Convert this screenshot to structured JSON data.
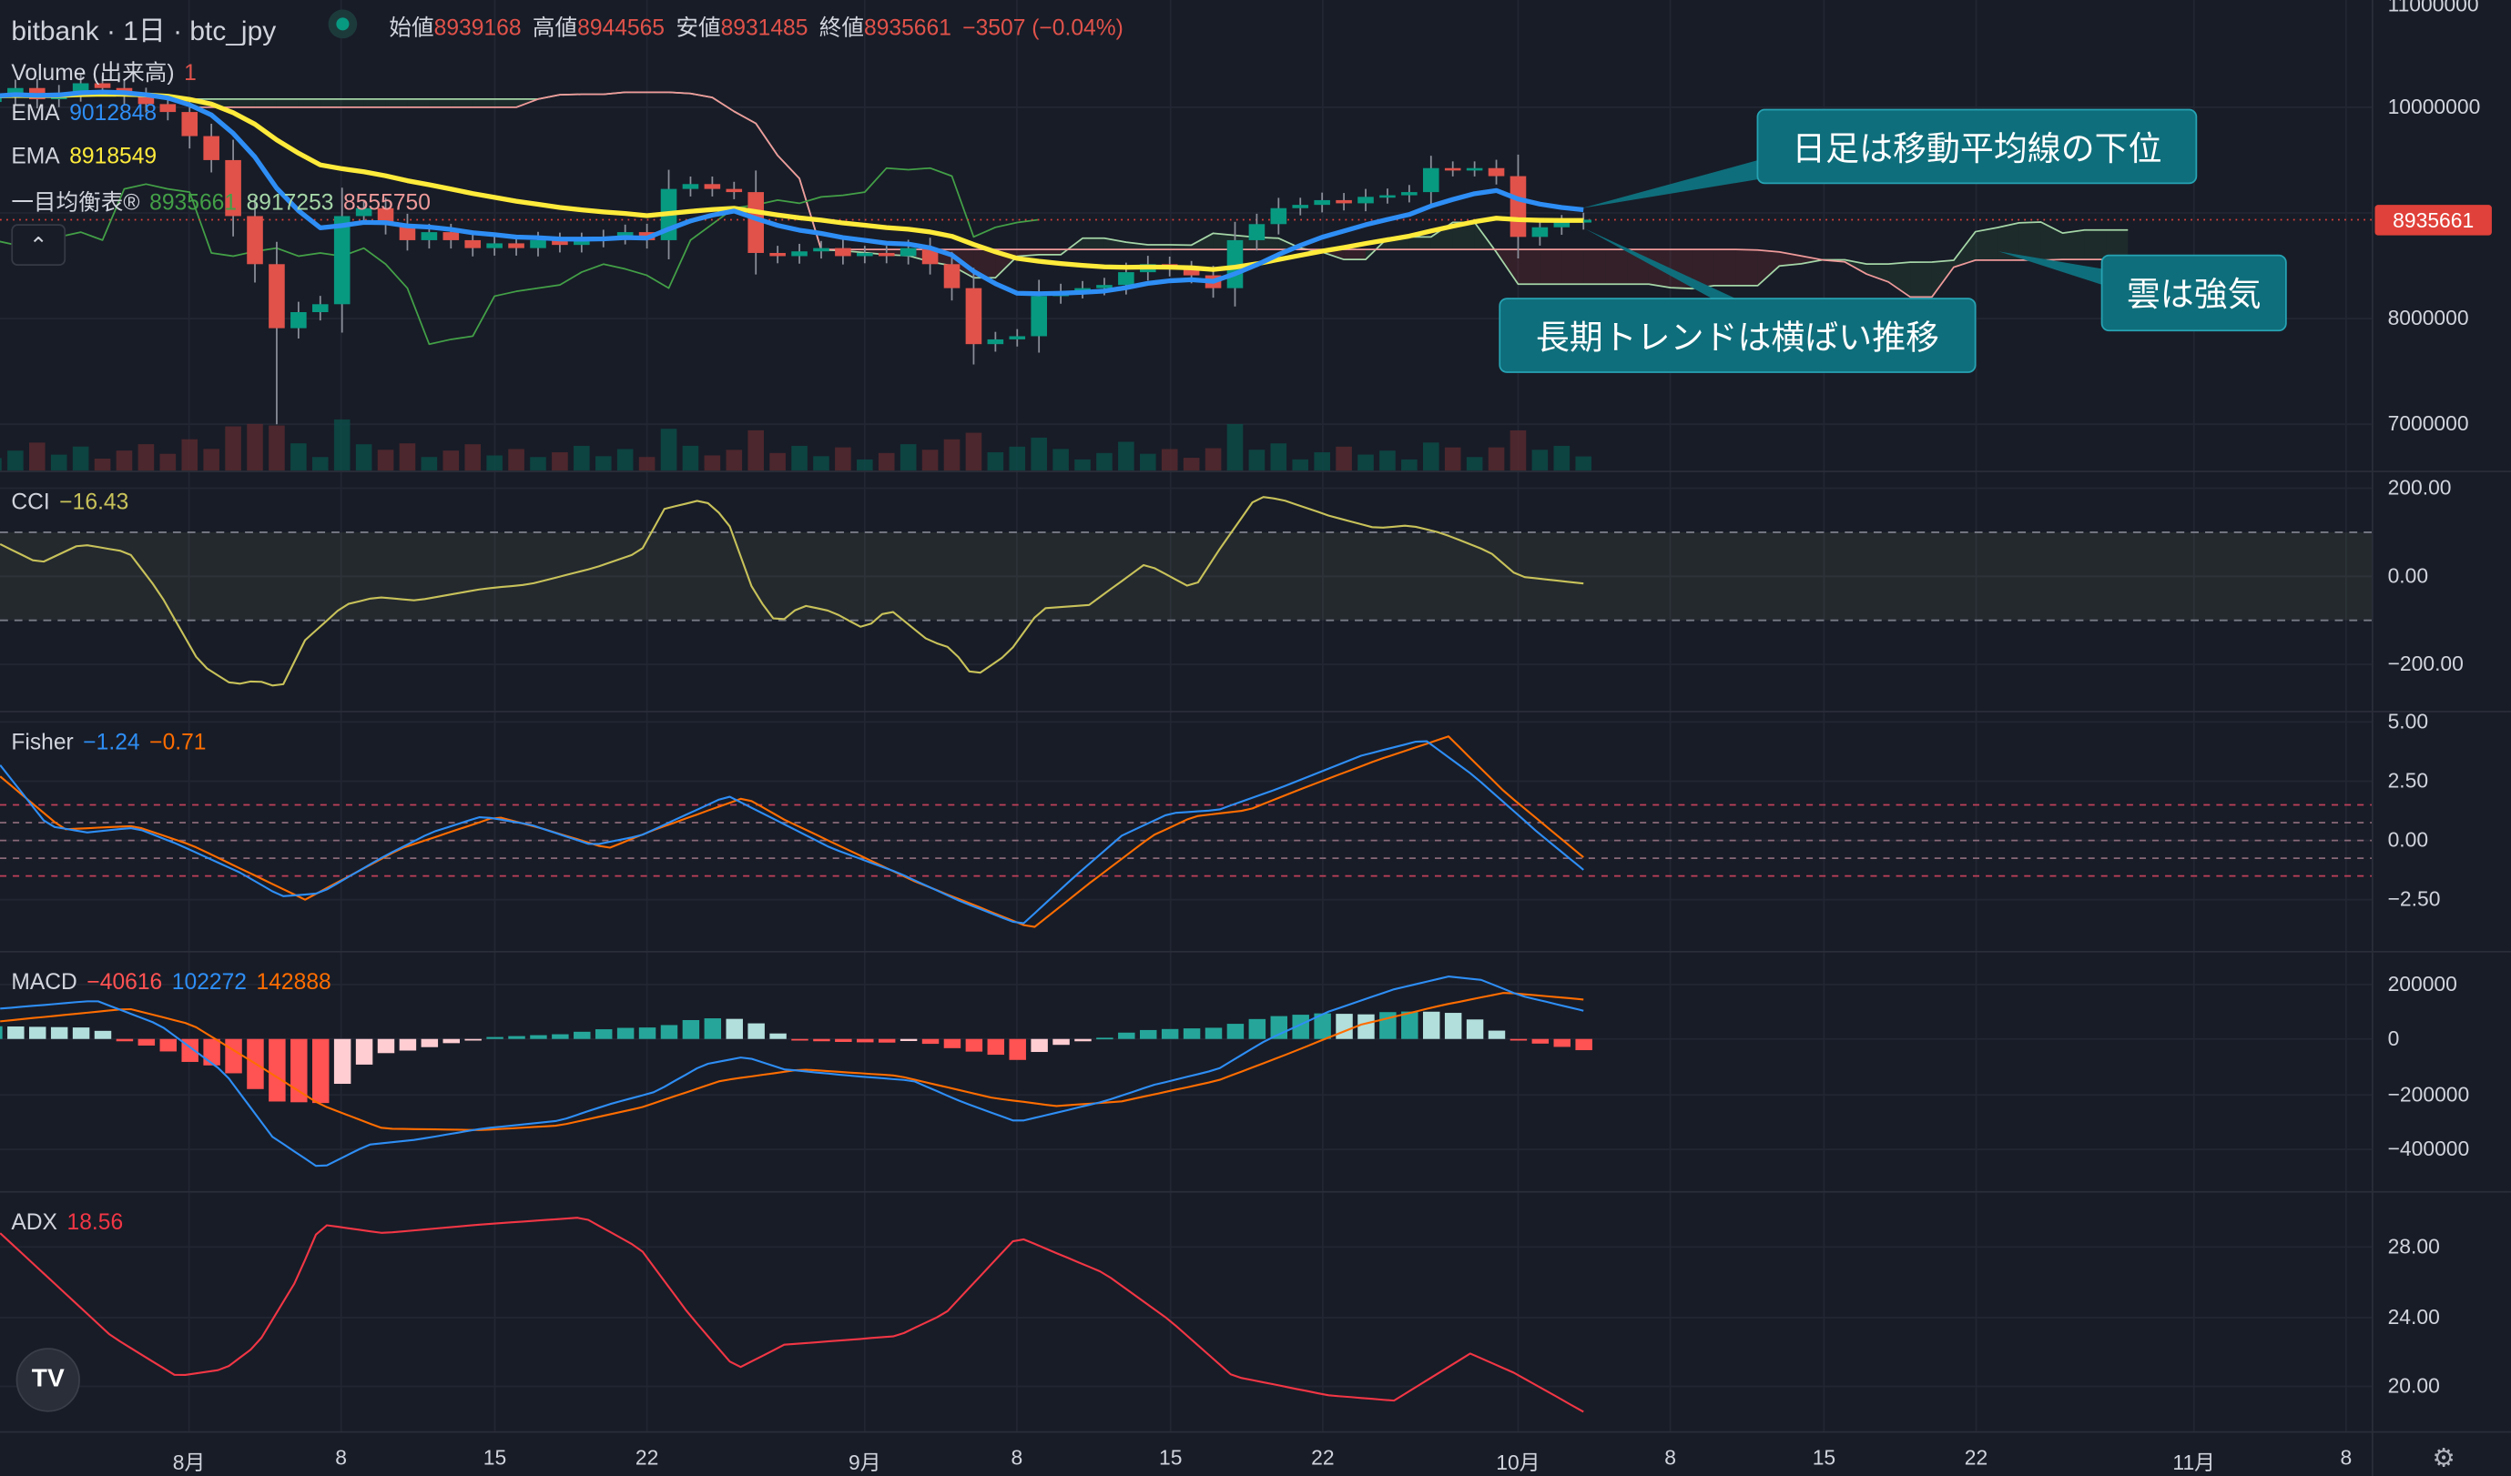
{
  "header": {
    "symbol": "bitbank · 1日 · btc_jpy",
    "open_label": "始値",
    "open": "8939168",
    "high_label": "高値",
    "high": "8944565",
    "low_label": "安値",
    "low": "8931485",
    "close_label": "終値",
    "close": "8935661",
    "change": "−3507 (−0.04%)"
  },
  "legends": {
    "volume": {
      "label": "Volume (出来高)",
      "value": "1"
    },
    "ema1": {
      "label": "EMA",
      "value": "9012848"
    },
    "ema2": {
      "label": "EMA",
      "value": "8918549"
    },
    "ichimoku": {
      "label": "一目均衡表®",
      "v1": "8935661",
      "v2": "8917253",
      "v3": "8555750"
    },
    "cci": {
      "label": "CCI",
      "value": "−16.43"
    },
    "fisher": {
      "label": "Fisher",
      "v1": "−1.24",
      "v2": "−0.71"
    },
    "macd": {
      "label": "MACD",
      "v1": "−40616",
      "v2": "102272",
      "v3": "142888"
    },
    "adx": {
      "label": "ADX",
      "value": "18.56"
    }
  },
  "price_axis": [
    "11000000",
    "10000000",
    "9000000",
    "8000000",
    "7000000"
  ],
  "current_price_label": "8935661",
  "cci_axis": [
    "200.00",
    "0.00",
    "−200.00"
  ],
  "fisher_axis": [
    "5.00",
    "2.50",
    "0.00",
    "−2.50"
  ],
  "macd_axis": [
    "200000",
    "0",
    "−200000",
    "−400000"
  ],
  "adx_axis": [
    "28.00",
    "24.00",
    "20.00"
  ],
  "time_axis": [
    "8月",
    "8",
    "15",
    "22",
    "9月",
    "8",
    "15",
    "22",
    "10月",
    "8",
    "15",
    "22",
    "11月",
    "8"
  ],
  "annotations": [
    "日足は移動平均線の下位",
    "長期トレンドは横ばい推移",
    "雲は強気"
  ],
  "icons": {
    "collapse": "chevron-up-icon",
    "logo": "tradingview-logo",
    "settings": "settings-icon"
  },
  "colors": {
    "up": "#089981",
    "down": "#e0524a",
    "ema1": "#2e8ef5",
    "ema2": "#ffeb3b",
    "chikou": "#43a047",
    "spanA": "#a5d6a7",
    "spanB": "#ef9a9a",
    "cci": "#c8c25a",
    "fisher1": "#2e8ef5",
    "fisher2": "#ff6d00",
    "adx": "#f23645",
    "accent": "#0f6e7b"
  },
  "chart_data": {
    "type": "candlestick",
    "start_date": "07-23",
    "closes": [
      10106000,
      10182000,
      10076000,
      10136000,
      10227000,
      10182000,
      10106000,
      10030000,
      9955000,
      9727000,
      9500000,
      8970000,
      8515000,
      7909000,
      8061000,
      8136000,
      8970000,
      9045000,
      8894000,
      8742000,
      8818000,
      8742000,
      8667000,
      8712000,
      8667000,
      8742000,
      8697000,
      8742000,
      8773000,
      8818000,
      8742000,
      9227000,
      9273000,
      9227000,
      9197000,
      8621000,
      8591000,
      8636000,
      8667000,
      8591000,
      8621000,
      8591000,
      8667000,
      8515000,
      8288000,
      7758000,
      7803000,
      7833000,
      8212000,
      8258000,
      8288000,
      8318000,
      8439000,
      8515000,
      8470000,
      8409000,
      8288000,
      8742000,
      8894000,
      9045000,
      9076000,
      9121000,
      9091000,
      9152000,
      9167000,
      9197000,
      9424000,
      9409000,
      9424000,
      9348000,
      8773000,
      8864000,
      8909000,
      8935661
    ],
    "first_open": 10050000,
    "special_lows": {
      "13": 7000000
    },
    "price_range": [
      6700000,
      11050000
    ],
    "ema_periods": [
      10,
      25
    ],
    "cci": [
      [
        0.3,
        73
      ],
      [
        2.1,
        29
      ],
      [
        4.0,
        73
      ],
      [
        6.2,
        55
      ],
      [
        7.6,
        -36
      ],
      [
        9.5,
        -200
      ],
      [
        11.0,
        -247
      ],
      [
        12.1,
        -236
      ],
      [
        13.2,
        -255
      ],
      [
        14.3,
        -145
      ],
      [
        16.1,
        -65
      ],
      [
        17.6,
        -47
      ],
      [
        19.4,
        -55
      ],
      [
        22.4,
        -29
      ],
      [
        24.6,
        -18
      ],
      [
        27.5,
        18
      ],
      [
        29.7,
        55
      ],
      [
        30.8,
        153
      ],
      [
        32.6,
        175
      ],
      [
        33.7,
        127
      ],
      [
        34.9,
        -36
      ],
      [
        36.0,
        -109
      ],
      [
        37.1,
        -65
      ],
      [
        38.5,
        -80
      ],
      [
        40.0,
        -120
      ],
      [
        41.1,
        -73
      ],
      [
        42.9,
        -145
      ],
      [
        44.0,
        -164
      ],
      [
        45.0,
        -229
      ],
      [
        46.6,
        -175
      ],
      [
        48.1,
        -73
      ],
      [
        50.3,
        -65
      ],
      [
        52.9,
        29
      ],
      [
        55.1,
        -29
      ],
      [
        56.2,
        55
      ],
      [
        58.0,
        182
      ],
      [
        59.1,
        175
      ],
      [
        61.3,
        138
      ],
      [
        63.5,
        109
      ],
      [
        65.0,
        116
      ],
      [
        66.5,
        98
      ],
      [
        68.7,
        55
      ],
      [
        70.0,
        0
      ],
      [
        73,
        -16.43
      ]
    ],
    "fisher": [
      [
        0.3,
        3.18
      ],
      [
        2.5,
        0.61
      ],
      [
        4.3,
        0.34
      ],
      [
        6.5,
        0.54
      ],
      [
        8.4,
        -0.14
      ],
      [
        11.3,
        -1.35
      ],
      [
        13.2,
        -2.36
      ],
      [
        15.0,
        -2.23
      ],
      [
        17.9,
        -0.68
      ],
      [
        20.1,
        0.34
      ],
      [
        22.4,
        1.01
      ],
      [
        24.6,
        0.68
      ],
      [
        27.5,
        -0.2
      ],
      [
        29.7,
        0.2
      ],
      [
        33.7,
        1.89
      ],
      [
        35.6,
        1.01
      ],
      [
        38.5,
        -0.34
      ],
      [
        41.5,
        -1.35
      ],
      [
        44.4,
        -2.57
      ],
      [
        47.2,
        -3.58
      ],
      [
        49.6,
        -1.55
      ],
      [
        51.8,
        0.2
      ],
      [
        54.0,
        1.15
      ],
      [
        56.2,
        1.28
      ],
      [
        59.1,
        2.23
      ],
      [
        62.8,
        3.58
      ],
      [
        65.7,
        4.26
      ],
      [
        68.0,
        2.7
      ],
      [
        70.9,
        0.34
      ],
      [
        73,
        -1.24
      ]
    ],
    "fisher_trigger": [
      [
        0.3,
        2.7
      ],
      [
        3.2,
        0.47
      ],
      [
        6.5,
        0.61
      ],
      [
        9.1,
        -0.2
      ],
      [
        14.3,
        -2.5
      ],
      [
        18.7,
        -0.34
      ],
      [
        23.1,
        1.01
      ],
      [
        25.3,
        0.47
      ],
      [
        28.2,
        -0.34
      ],
      [
        30.4,
        0.47
      ],
      [
        34.5,
        1.82
      ],
      [
        36.3,
        0.88
      ],
      [
        42.2,
        -1.69
      ],
      [
        47.7,
        -3.72
      ],
      [
        50.3,
        -1.82
      ],
      [
        53.2,
        0.2
      ],
      [
        55.1,
        1.01
      ],
      [
        57.6,
        1.28
      ],
      [
        59.8,
        2.09
      ],
      [
        63.5,
        3.38
      ],
      [
        66.8,
        4.39
      ],
      [
        69.4,
        2.03
      ],
      [
        73,
        -0.71
      ]
    ],
    "macd": [
      [
        0.3,
        110000
      ],
      [
        4.7,
        139000
      ],
      [
        7.6,
        52000
      ],
      [
        10.6,
        -122000
      ],
      [
        12.8,
        -354000
      ],
      [
        15.0,
        -470000
      ],
      [
        17.2,
        -383000
      ],
      [
        19.4,
        -365000
      ],
      [
        22.4,
        -325000
      ],
      [
        26.0,
        -296000
      ],
      [
        28.2,
        -238000
      ],
      [
        30.4,
        -191000
      ],
      [
        32.6,
        -93000
      ],
      [
        34.5,
        -64000
      ],
      [
        36.3,
        -110000
      ],
      [
        39.3,
        -133000
      ],
      [
        42.2,
        -151000
      ],
      [
        44.4,
        -226000
      ],
      [
        47.0,
        -301000
      ],
      [
        48.8,
        -267000
      ],
      [
        51.0,
        -226000
      ],
      [
        53.2,
        -168000
      ],
      [
        56.2,
        -110000
      ],
      [
        58.4,
        -6000
      ],
      [
        61.3,
        99000
      ],
      [
        64.3,
        180000
      ],
      [
        66.8,
        226000
      ],
      [
        68.3,
        214000
      ],
      [
        70.1,
        157000
      ],
      [
        73,
        102272
      ]
    ],
    "macd_signal": [
      [
        0.3,
        64000
      ],
      [
        6.2,
        110000
      ],
      [
        9.1,
        52000
      ],
      [
        12.1,
        -93000
      ],
      [
        15.0,
        -238000
      ],
      [
        17.9,
        -325000
      ],
      [
        22.4,
        -330000
      ],
      [
        26.0,
        -313000
      ],
      [
        29.7,
        -249000
      ],
      [
        33.4,
        -151000
      ],
      [
        37.1,
        -110000
      ],
      [
        41.5,
        -133000
      ],
      [
        45.9,
        -214000
      ],
      [
        48.8,
        -243000
      ],
      [
        51.8,
        -226000
      ],
      [
        56.2,
        -151000
      ],
      [
        59.1,
        -64000
      ],
      [
        62.8,
        52000
      ],
      [
        66.5,
        122000
      ],
      [
        69.4,
        168000
      ],
      [
        73,
        142888
      ]
    ],
    "adx": [
      [
        0.3,
        28.8
      ],
      [
        5.4,
        22.9
      ],
      [
        8.4,
        20.6
      ],
      [
        10.6,
        21.0
      ],
      [
        12.1,
        22.4
      ],
      [
        13.9,
        26.1
      ],
      [
        15.0,
        29.3
      ],
      [
        17.9,
        28.8
      ],
      [
        22.4,
        29.3
      ],
      [
        27.1,
        29.7
      ],
      [
        29.7,
        27.9
      ],
      [
        31.9,
        24.2
      ],
      [
        34.1,
        21.0
      ],
      [
        36.3,
        22.4
      ],
      [
        41.5,
        22.9
      ],
      [
        43.7,
        24.2
      ],
      [
        47.0,
        28.6
      ],
      [
        51.0,
        26.5
      ],
      [
        54.0,
        23.8
      ],
      [
        56.9,
        20.6
      ],
      [
        61.3,
        19.5
      ],
      [
        64.3,
        19.2
      ],
      [
        67.8,
        21.9
      ],
      [
        69.8,
        20.8
      ],
      [
        73,
        18.56
      ]
    ]
  }
}
